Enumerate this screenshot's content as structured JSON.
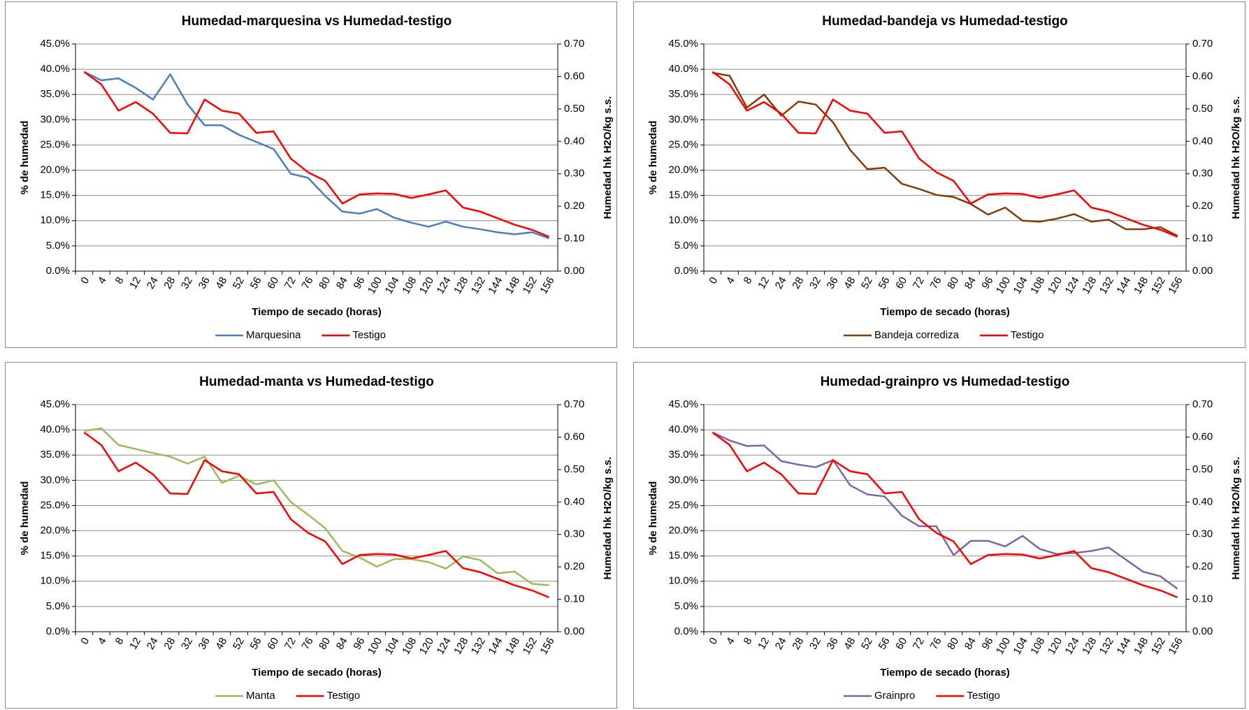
{
  "chart_data": [
    {
      "type": "line",
      "title": "Humedad-marquesina vs Humedad-testigo",
      "x_label": "Tiempo de secado (horas)",
      "y_label": "% de humedad",
      "y2_label": "Humedad hk H2O/kg s.s.",
      "categories": [
        "0",
        "4",
        "8",
        "12",
        "24",
        "28",
        "32",
        "36",
        "48",
        "52",
        "56",
        "60",
        "72",
        "76",
        "80",
        "84",
        "96",
        "100",
        "104",
        "108",
        "120",
        "124",
        "128",
        "132",
        "144",
        "148",
        "152",
        "156"
      ],
      "series": [
        {
          "name": "Marquesina",
          "color": "#4a7ebb",
          "values": [
            39.5,
            37.8,
            38.2,
            36.3,
            34,
            39,
            33.1,
            28.9,
            28.9,
            27,
            25.6,
            24.2,
            19.3,
            18.5,
            14.9,
            11.8,
            11.4,
            12.3,
            10.6,
            9.6,
            8.8,
            9.8,
            8.8,
            8.3,
            7.7,
            7.3,
            7.7,
            6.5
          ]
        },
        {
          "name": "Testigo",
          "color": "#ff0000",
          "values": [
            39.5,
            37,
            31.8,
            33.5,
            31.2,
            27.4,
            27.3,
            34,
            31.8,
            31.2,
            27.4,
            27.7,
            22.3,
            19.6,
            17.9,
            13.4,
            15.2,
            15.4,
            15.3,
            14.5,
            15.2,
            16,
            12.6,
            11.8,
            10.5,
            9.2,
            8.2,
            6.8
          ]
        }
      ],
      "ylim": [
        0,
        45
      ],
      "yticks": [
        {
          "value": 0,
          "label": "0.0%"
        },
        {
          "value": 5,
          "label": "5.0%"
        },
        {
          "value": 10,
          "label": "10.0%"
        },
        {
          "value": 15,
          "label": "15.0%"
        },
        {
          "value": 20,
          "label": "20.0%"
        },
        {
          "value": 25,
          "label": "25.0%"
        },
        {
          "value": 30,
          "label": "30.0%"
        },
        {
          "value": 35,
          "label": "35.0%"
        },
        {
          "value": 40,
          "label": "40.0%"
        },
        {
          "value": 45,
          "label": "45.0%"
        }
      ],
      "y2lim": [
        0,
        0.7
      ],
      "y2ticks": [
        {
          "value": 0,
          "label": "0.00"
        },
        {
          "value": 0.1,
          "label": "0.10"
        },
        {
          "value": 0.2,
          "label": "0.20"
        },
        {
          "value": 0.3,
          "label": "0.30"
        },
        {
          "value": 0.4,
          "label": "0.40"
        },
        {
          "value": 0.5,
          "label": "0.50"
        },
        {
          "value": 0.6,
          "label": "0.60"
        },
        {
          "value": 0.7,
          "label": "0.70"
        }
      ],
      "grid": true
    },
    {
      "type": "line",
      "title": "Humedad-bandeja vs Humedad-testigo",
      "x_label": "Tiempo de secado (horas)",
      "y_label": "% de humedad",
      "y2_label": "Humedad hk H2O/kg s.s.",
      "categories": [
        "0",
        "4",
        "8",
        "12",
        "24",
        "28",
        "32",
        "36",
        "48",
        "52",
        "56",
        "60",
        "72",
        "76",
        "80",
        "84",
        "96",
        "100",
        "104",
        "108",
        "120",
        "124",
        "128",
        "132",
        "144",
        "148",
        "152",
        "156"
      ],
      "series": [
        {
          "name": "Bandeja corrediza",
          "color": "#843c0c",
          "values": [
            39.3,
            38.7,
            32.4,
            35,
            30.8,
            33.6,
            33,
            29.5,
            24,
            20.2,
            20.5,
            17.3,
            16.3,
            15.1,
            14.7,
            13.3,
            11.2,
            12.6,
            10,
            9.8,
            10.4,
            11.3,
            9.8,
            10.2,
            8.3,
            8.3,
            8.7,
            7
          ]
        },
        {
          "name": "Testigo",
          "color": "#ff0000",
          "values": [
            39.5,
            37,
            31.8,
            33.5,
            31.2,
            27.4,
            27.3,
            34,
            31.8,
            31.2,
            27.4,
            27.7,
            22.3,
            19.6,
            17.9,
            13.4,
            15.2,
            15.4,
            15.3,
            14.5,
            15.2,
            16,
            12.6,
            11.8,
            10.5,
            9.2,
            8.2,
            6.8
          ]
        }
      ],
      "ylim": [
        0,
        45
      ],
      "yticks": [
        {
          "value": 0,
          "label": "0.0%"
        },
        {
          "value": 5,
          "label": "5.0%"
        },
        {
          "value": 10,
          "label": "10.0%"
        },
        {
          "value": 15,
          "label": "15.0%"
        },
        {
          "value": 20,
          "label": "20.0%"
        },
        {
          "value": 25,
          "label": "25.0%"
        },
        {
          "value": 30,
          "label": "30.0%"
        },
        {
          "value": 35,
          "label": "35.0%"
        },
        {
          "value": 40,
          "label": "40.0%"
        },
        {
          "value": 45,
          "label": "45.0%"
        }
      ],
      "y2lim": [
        0,
        0.7
      ],
      "y2ticks": [
        {
          "value": 0,
          "label": "0.00"
        },
        {
          "value": 0.1,
          "label": "0.10"
        },
        {
          "value": 0.2,
          "label": "0.20"
        },
        {
          "value": 0.3,
          "label": "0.30"
        },
        {
          "value": 0.4,
          "label": "0.40"
        },
        {
          "value": 0.5,
          "label": "0.50"
        },
        {
          "value": 0.6,
          "label": "0.60"
        },
        {
          "value": 0.7,
          "label": "0.70"
        }
      ],
      "grid": true
    },
    {
      "type": "line",
      "title": "Humedad-manta vs Humedad-testigo",
      "x_label": "Tiempo de secado (horas)",
      "y_label": "% de humedad",
      "y2_label": "Humedad hk H2O/kg s.s.",
      "categories": [
        "0",
        "4",
        "8",
        "12",
        "24",
        "28",
        "32",
        "36",
        "48",
        "52",
        "56",
        "60",
        "72",
        "76",
        "80",
        "84",
        "96",
        "100",
        "104",
        "108",
        "120",
        "124",
        "128",
        "132",
        "144",
        "148",
        "152",
        "156"
      ],
      "series": [
        {
          "name": "Manta",
          "color": "#9bbb59",
          "values": [
            39.8,
            40.3,
            37,
            36.2,
            35.4,
            34.7,
            33.3,
            34.7,
            29.5,
            30.9,
            29.2,
            30,
            25.7,
            23.2,
            20.5,
            16,
            14.7,
            12.9,
            14.4,
            14.4,
            13.8,
            12.5,
            14.9,
            14.2,
            11.6,
            11.9,
            9.5,
            9.2
          ]
        },
        {
          "name": "Testigo",
          "color": "#ff0000",
          "values": [
            39.5,
            37,
            31.8,
            33.5,
            31.2,
            27.4,
            27.3,
            34,
            31.8,
            31.2,
            27.4,
            27.7,
            22.3,
            19.6,
            17.9,
            13.4,
            15.2,
            15.4,
            15.3,
            14.5,
            15.2,
            16,
            12.6,
            11.8,
            10.5,
            9.2,
            8.2,
            6.8
          ]
        }
      ],
      "ylim": [
        0,
        45
      ],
      "yticks": [
        {
          "value": 0,
          "label": "0.0%"
        },
        {
          "value": 5,
          "label": "5.0%"
        },
        {
          "value": 10,
          "label": "10.0%"
        },
        {
          "value": 15,
          "label": "15.0%"
        },
        {
          "value": 20,
          "label": "20.0%"
        },
        {
          "value": 25,
          "label": "25.0%"
        },
        {
          "value": 30,
          "label": "30.0%"
        },
        {
          "value": 35,
          "label": "35.0%"
        },
        {
          "value": 40,
          "label": "40.0%"
        },
        {
          "value": 45,
          "label": "45.0%"
        }
      ],
      "y2lim": [
        0,
        0.7
      ],
      "y2ticks": [
        {
          "value": 0,
          "label": "0.00"
        },
        {
          "value": 0.1,
          "label": "0.10"
        },
        {
          "value": 0.2,
          "label": "0.20"
        },
        {
          "value": 0.3,
          "label": "0.30"
        },
        {
          "value": 0.4,
          "label": "0.40"
        },
        {
          "value": 0.5,
          "label": "0.50"
        },
        {
          "value": 0.6,
          "label": "0.60"
        },
        {
          "value": 0.7,
          "label": "0.70"
        }
      ],
      "grid": true
    },
    {
      "type": "line",
      "title": "Humedad-grainpro vs Humedad-testigo",
      "x_label": "Tiempo de secado (horas)",
      "y_label": "% de humedad",
      "y2_label": "Humedad hk H2O/kg s.s.",
      "categories": [
        "0",
        "4",
        "8",
        "12",
        "24",
        "28",
        "32",
        "36",
        "48",
        "52",
        "56",
        "60",
        "72",
        "76",
        "80",
        "84",
        "96",
        "100",
        "104",
        "108",
        "120",
        "124",
        "128",
        "132",
        "144",
        "148",
        "152",
        "156"
      ],
      "series": [
        {
          "name": "Grainpro",
          "color": "#8064a2",
          "values": [
            39.5,
            37.9,
            36.8,
            36.9,
            33.8,
            33.1,
            32.6,
            34,
            29,
            27.2,
            26.8,
            23,
            20.9,
            20.9,
            15.2,
            18,
            18,
            16.9,
            19,
            16.4,
            15.4,
            15.6,
            16,
            16.7,
            14.3,
            11.9,
            11,
            8.5
          ]
        },
        {
          "name": "Testigo",
          "color": "#ff0000",
          "values": [
            39.5,
            37,
            31.8,
            33.5,
            31.2,
            27.4,
            27.3,
            34,
            31.8,
            31.2,
            27.4,
            27.7,
            22.3,
            19.6,
            17.9,
            13.4,
            15.2,
            15.4,
            15.3,
            14.5,
            15.2,
            16,
            12.6,
            11.8,
            10.5,
            9.2,
            8.2,
            6.8
          ]
        }
      ],
      "ylim": [
        0,
        45
      ],
      "yticks": [
        {
          "value": 0,
          "label": "0.0%"
        },
        {
          "value": 5,
          "label": "5.0%"
        },
        {
          "value": 10,
          "label": "10.0%"
        },
        {
          "value": 15,
          "label": "15.0%"
        },
        {
          "value": 20,
          "label": "20.0%"
        },
        {
          "value": 25,
          "label": "25.0%"
        },
        {
          "value": 30,
          "label": "30.0%"
        },
        {
          "value": 35,
          "label": "35.0%"
        },
        {
          "value": 40,
          "label": "40.0%"
        },
        {
          "value": 45,
          "label": "45.0%"
        }
      ],
      "y2lim": [
        0,
        0.7
      ],
      "y2ticks": [
        {
          "value": 0,
          "label": "0.00"
        },
        {
          "value": 0.1,
          "label": "0.10"
        },
        {
          "value": 0.2,
          "label": "0.20"
        },
        {
          "value": 0.3,
          "label": "0.30"
        },
        {
          "value": 0.4,
          "label": "0.40"
        },
        {
          "value": 0.5,
          "label": "0.50"
        },
        {
          "value": 0.6,
          "label": "0.60"
        },
        {
          "value": 0.7,
          "label": "0.70"
        }
      ],
      "grid": true
    }
  ]
}
